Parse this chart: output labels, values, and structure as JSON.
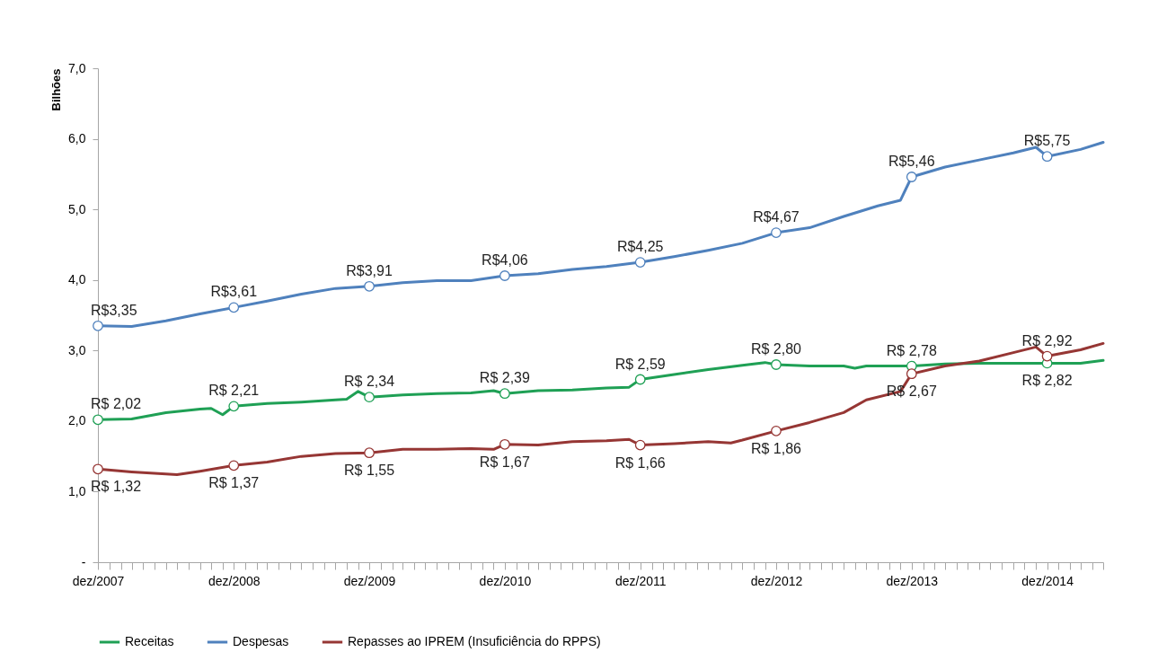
{
  "chart_data": {
    "type": "line",
    "ylabel": "Bilhões",
    "legend": "bottom",
    "grid": false,
    "xlim": [
      "2007-12",
      "2015-05"
    ],
    "xticks": [
      {
        "value": "2007-12",
        "label": "dez/2007"
      },
      {
        "value": "2008-01",
        "label": null
      },
      {
        "value": "2008-02",
        "label": null
      },
      {
        "value": "2008-03",
        "label": null
      },
      {
        "value": "2008-04",
        "label": null
      },
      {
        "value": "2008-05",
        "label": null
      },
      {
        "value": "2008-06",
        "label": null
      },
      {
        "value": "2008-07",
        "label": null
      },
      {
        "value": "2008-08",
        "label": null
      },
      {
        "value": "2008-09",
        "label": null
      },
      {
        "value": "2008-10",
        "label": null
      },
      {
        "value": "2008-11",
        "label": null
      },
      {
        "value": "2008-12",
        "label": "dez/2008"
      },
      {
        "value": "2009-01",
        "label": null
      },
      {
        "value": "2009-02",
        "label": null
      },
      {
        "value": "2009-03",
        "label": null
      },
      {
        "value": "2009-04",
        "label": null
      },
      {
        "value": "2009-05",
        "label": null
      },
      {
        "value": "2009-06",
        "label": null
      },
      {
        "value": "2009-07",
        "label": null
      },
      {
        "value": "2009-08",
        "label": null
      },
      {
        "value": "2009-09",
        "label": null
      },
      {
        "value": "2009-10",
        "label": null
      },
      {
        "value": "2009-11",
        "label": null
      },
      {
        "value": "2009-12",
        "label": "dez/2009"
      },
      {
        "value": "2010-01",
        "label": null
      },
      {
        "value": "2010-02",
        "label": null
      },
      {
        "value": "2010-03",
        "label": null
      },
      {
        "value": "2010-04",
        "label": null
      },
      {
        "value": "2010-05",
        "label": null
      },
      {
        "value": "2010-06",
        "label": null
      },
      {
        "value": "2010-07",
        "label": null
      },
      {
        "value": "2010-08",
        "label": null
      },
      {
        "value": "2010-09",
        "label": null
      },
      {
        "value": "2010-10",
        "label": null
      },
      {
        "value": "2010-11",
        "label": null
      },
      {
        "value": "2010-12",
        "label": "dez/2010"
      },
      {
        "value": "2011-01",
        "label": null
      },
      {
        "value": "2011-02",
        "label": null
      },
      {
        "value": "2011-03",
        "label": null
      },
      {
        "value": "2011-04",
        "label": null
      },
      {
        "value": "2011-05",
        "label": null
      },
      {
        "value": "2011-06",
        "label": null
      },
      {
        "value": "2011-07",
        "label": null
      },
      {
        "value": "2011-08",
        "label": null
      },
      {
        "value": "2011-09",
        "label": null
      },
      {
        "value": "2011-10",
        "label": null
      },
      {
        "value": "2011-11",
        "label": null
      },
      {
        "value": "2011-12",
        "label": "dez/2011"
      },
      {
        "value": "2012-01",
        "label": null
      },
      {
        "value": "2012-02",
        "label": null
      },
      {
        "value": "2012-03",
        "label": null
      },
      {
        "value": "2012-04",
        "label": null
      },
      {
        "value": "2012-05",
        "label": null
      },
      {
        "value": "2012-06",
        "label": null
      },
      {
        "value": "2012-07",
        "label": null
      },
      {
        "value": "2012-08",
        "label": null
      },
      {
        "value": "2012-09",
        "label": null
      },
      {
        "value": "2012-10",
        "label": null
      },
      {
        "value": "2012-11",
        "label": null
      },
      {
        "value": "2012-12",
        "label": "dez/2012"
      },
      {
        "value": "2013-01",
        "label": null
      },
      {
        "value": "2013-02",
        "label": null
      },
      {
        "value": "2013-03",
        "label": null
      },
      {
        "value": "2013-04",
        "label": null
      },
      {
        "value": "2013-05",
        "label": null
      },
      {
        "value": "2013-06",
        "label": null
      },
      {
        "value": "2013-07",
        "label": null
      },
      {
        "value": "2013-08",
        "label": null
      },
      {
        "value": "2013-09",
        "label": null
      },
      {
        "value": "2013-10",
        "label": null
      },
      {
        "value": "2013-11",
        "label": null
      },
      {
        "value": "2013-12",
        "label": "dez/2013"
      },
      {
        "value": "2014-01",
        "label": null
      },
      {
        "value": "2014-02",
        "label": null
      },
      {
        "value": "2014-03",
        "label": null
      },
      {
        "value": "2014-04",
        "label": null
      },
      {
        "value": "2014-05",
        "label": null
      },
      {
        "value": "2014-06",
        "label": null
      },
      {
        "value": "2014-07",
        "label": null
      },
      {
        "value": "2014-08",
        "label": null
      },
      {
        "value": "2014-09",
        "label": null
      },
      {
        "value": "2014-10",
        "label": null
      },
      {
        "value": "2014-11",
        "label": null
      },
      {
        "value": "2014-12",
        "label": "dez/2014"
      },
      {
        "value": "2015-01",
        "label": null
      },
      {
        "value": "2015-02",
        "label": null
      },
      {
        "value": "2015-03",
        "label": null
      },
      {
        "value": "2015-04",
        "label": null
      },
      {
        "value": "2015-05",
        "label": null
      }
    ],
    "ylim": [
      0,
      7
    ],
    "yticks": [
      {
        "value": 0,
        "label": "-"
      },
      {
        "value": 1,
        "label": "1,0"
      },
      {
        "value": 2,
        "label": "2,0"
      },
      {
        "value": 3,
        "label": "3,0"
      },
      {
        "value": 4,
        "label": "4,0"
      },
      {
        "value": 5,
        "label": "5,0"
      },
      {
        "value": 6,
        "label": "6,0"
      },
      {
        "value": 7,
        "label": "7,0"
      }
    ],
    "series": [
      {
        "name": "Receitas",
        "color": "#1fa055",
        "x": [
          "2007-12",
          "2008-03",
          "2008-06",
          "2008-09",
          "2008-10",
          "2008-11",
          "2008-12",
          "2009-03",
          "2009-06",
          "2009-09",
          "2009-10",
          "2009-11",
          "2009-12",
          "2010-03",
          "2010-06",
          "2010-09",
          "2010-11",
          "2010-12",
          "2011-03",
          "2011-06",
          "2011-09",
          "2011-11",
          "2011-12",
          "2012-03",
          "2012-06",
          "2012-09",
          "2012-11",
          "2012-12",
          "2013-03",
          "2013-06",
          "2013-07",
          "2013-08",
          "2013-12",
          "2014-03",
          "2014-06",
          "2014-12",
          "2015-03",
          "2015-05"
        ],
        "values": [
          2.02,
          2.03,
          2.12,
          2.17,
          2.18,
          2.09,
          2.21,
          2.25,
          2.27,
          2.3,
          2.31,
          2.42,
          2.34,
          2.37,
          2.39,
          2.4,
          2.43,
          2.39,
          2.43,
          2.44,
          2.47,
          2.48,
          2.59,
          2.66,
          2.73,
          2.79,
          2.83,
          2.8,
          2.78,
          2.78,
          2.75,
          2.78,
          2.78,
          2.81,
          2.82,
          2.82,
          2.82,
          2.86
        ]
      },
      {
        "name": "Despesas",
        "color": "#4f81bd",
        "x": [
          "2007-12",
          "2008-03",
          "2008-06",
          "2008-09",
          "2008-12",
          "2009-03",
          "2009-06",
          "2009-09",
          "2009-12",
          "2010-03",
          "2010-06",
          "2010-09",
          "2010-12",
          "2011-03",
          "2011-06",
          "2011-09",
          "2011-12",
          "2012-03",
          "2012-06",
          "2012-09",
          "2012-12",
          "2013-03",
          "2013-06",
          "2013-09",
          "2013-11",
          "2013-12",
          "2014-03",
          "2014-06",
          "2014-09",
          "2014-11",
          "2014-12",
          "2015-03",
          "2015-05"
        ],
        "values": [
          3.35,
          3.34,
          3.42,
          3.52,
          3.61,
          3.7,
          3.8,
          3.88,
          3.91,
          3.96,
          3.99,
          3.99,
          4.06,
          4.09,
          4.15,
          4.19,
          4.25,
          4.33,
          4.42,
          4.52,
          4.67,
          4.74,
          4.9,
          5.05,
          5.13,
          5.46,
          5.6,
          5.7,
          5.8,
          5.88,
          5.75,
          5.85,
          5.95
        ]
      },
      {
        "name": "Repasses ao IPREM (Insuficiência do RPPS)",
        "color": "#963634",
        "x": [
          "2007-12",
          "2008-03",
          "2008-06",
          "2008-07",
          "2008-09",
          "2008-12",
          "2009-03",
          "2009-06",
          "2009-09",
          "2009-12",
          "2010-03",
          "2010-06",
          "2010-09",
          "2010-11",
          "2010-12",
          "2011-03",
          "2011-06",
          "2011-09",
          "2011-11",
          "2011-12",
          "2012-03",
          "2012-06",
          "2012-08",
          "2012-09",
          "2012-12",
          "2013-03",
          "2013-06",
          "2013-08",
          "2013-11",
          "2013-12",
          "2014-03",
          "2014-06",
          "2014-09",
          "2014-11",
          "2014-12",
          "2015-03",
          "2015-05"
        ],
        "values": [
          1.32,
          1.28,
          1.25,
          1.24,
          1.29,
          1.37,
          1.42,
          1.5,
          1.54,
          1.55,
          1.6,
          1.6,
          1.61,
          1.6,
          1.67,
          1.66,
          1.71,
          1.72,
          1.74,
          1.66,
          1.68,
          1.71,
          1.69,
          1.73,
          1.86,
          1.98,
          2.12,
          2.3,
          2.42,
          2.67,
          2.78,
          2.85,
          2.97,
          3.05,
          2.92,
          3.01,
          3.1
        ]
      },
      {
        "type": "scatter",
        "marker": "circle",
        "color": "#1fa055",
        "x": [
          "2007-12",
          "2008-12",
          "2009-12",
          "2010-12",
          "2011-12",
          "2012-12",
          "2013-12",
          "2014-12"
        ],
        "values": [
          2.02,
          2.21,
          2.34,
          2.39,
          2.59,
          2.8,
          2.78,
          2.82
        ],
        "value_labels": [
          "R$ 2,02",
          "R$ 2,21",
          "R$ 2,34",
          "R$ 2,39",
          "R$ 2,59",
          "R$ 2,80",
          "R$ 2,78",
          "R$ 2,82"
        ]
      },
      {
        "type": "scatter",
        "marker": "circle",
        "color": "#4f81bd",
        "x": [
          "2007-12",
          "2008-12",
          "2009-12",
          "2010-12",
          "2011-12",
          "2012-12",
          "2013-12",
          "2014-12"
        ],
        "values": [
          3.35,
          3.61,
          3.91,
          4.06,
          4.25,
          4.67,
          5.46,
          5.75
        ],
        "value_labels": [
          "R$3,35",
          "R$3,61",
          "R$3,91",
          "R$4,06",
          "R$4,25",
          "R$4,67",
          "R$5,46",
          "R$5,75"
        ]
      },
      {
        "type": "scatter",
        "marker": "circle",
        "color": "#963634",
        "x": [
          "2007-12",
          "2008-12",
          "2009-12",
          "2010-12",
          "2011-12",
          "2012-12",
          "2013-12",
          "2014-12"
        ],
        "values": [
          1.32,
          1.37,
          1.55,
          1.67,
          1.66,
          1.86,
          2.67,
          2.92
        ],
        "value_labels": [
          "R$ 1,32",
          "R$ 1,37",
          "R$ 1,55",
          "R$ 1,67",
          "R$ 1,66",
          "R$ 1,86",
          "R$ 2,67",
          "R$ 2,92"
        ]
      }
    ]
  }
}
